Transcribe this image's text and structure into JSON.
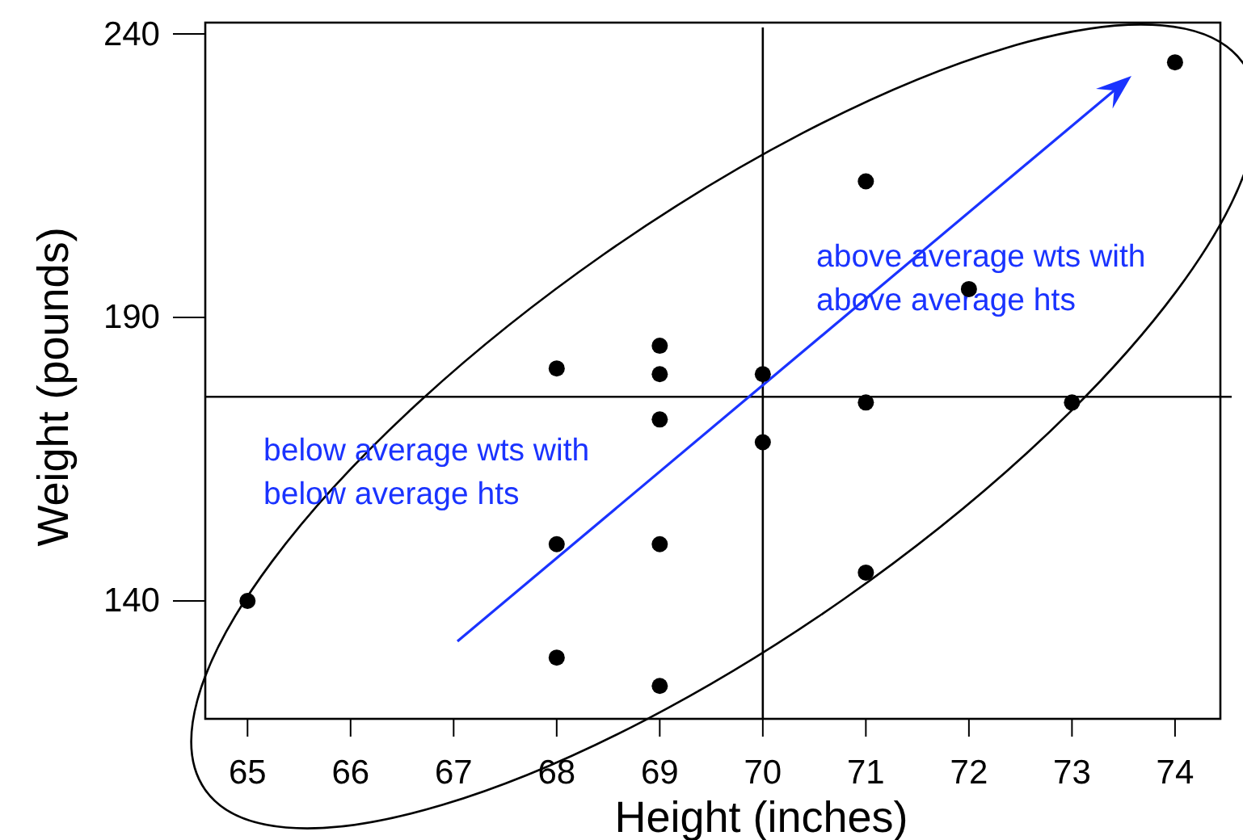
{
  "chart_data": {
    "type": "scatter",
    "xlabel": "Height (inches)",
    "ylabel": "Weight (pounds)",
    "x": [
      65,
      68,
      68,
      68,
      69,
      69,
      69,
      69,
      69,
      70,
      70,
      71,
      71,
      71,
      72,
      73,
      74
    ],
    "values": [
      140,
      181,
      150,
      130,
      185,
      180,
      172,
      150,
      125,
      180,
      168,
      214,
      175,
      145,
      195,
      175,
      235
    ],
    "color": "#000000",
    "marker": "circle",
    "xlim": [
      64.59,
      74.44
    ],
    "ylim": [
      119.2,
      242
    ],
    "xticks": [
      65,
      66,
      67,
      68,
      69,
      70,
      71,
      72,
      73,
      74
    ],
    "yticks": [
      140,
      190,
      240
    ],
    "ref_lines": [
      {
        "axis": "x",
        "value": 70
      },
      {
        "axis": "y",
        "value": 176
      }
    ],
    "annotations": [
      "above average wts with above average hts",
      "below average wts with below average hts"
    ],
    "grid": false
  }
}
